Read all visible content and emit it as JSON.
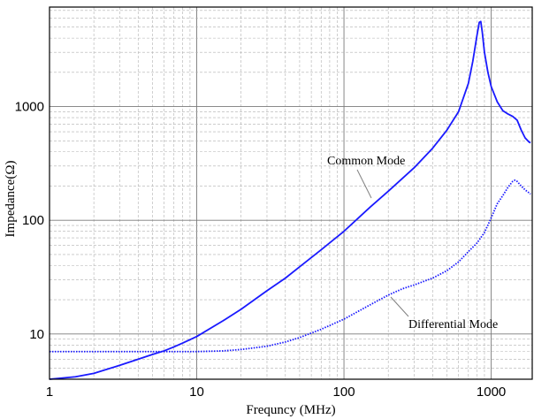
{
  "chart_data": {
    "type": "line",
    "title": "",
    "xlabel": "Frequncy (MHz)",
    "ylabel": "Impedance(Ω)",
    "x_scale": "log",
    "y_scale": "log",
    "xlim": [
      1,
      1900
    ],
    "ylim": [
      4,
      7500
    ],
    "grid": true,
    "x_ticks": [
      {
        "value": 1,
        "label": "1"
      },
      {
        "value": 10,
        "label": "10"
      },
      {
        "value": 100,
        "label": "100"
      },
      {
        "value": 1000,
        "label": "1000"
      }
    ],
    "y_ticks": [
      {
        "value": 10,
        "label": "10"
      },
      {
        "value": 100,
        "label": "100"
      },
      {
        "value": 1000,
        "label": "1000"
      }
    ],
    "series": [
      {
        "name": "Common Mode",
        "color": "#1a1aff",
        "style": "solid",
        "points": [
          [
            1,
            4.0
          ],
          [
            1.5,
            4.2
          ],
          [
            2,
            4.5
          ],
          [
            3,
            5.3
          ],
          [
            4,
            6.0
          ],
          [
            5,
            6.6
          ],
          [
            6,
            7.1
          ],
          [
            7,
            7.7
          ],
          [
            8,
            8.3
          ],
          [
            10,
            9.5
          ],
          [
            15,
            13
          ],
          [
            20,
            16.5
          ],
          [
            30,
            24
          ],
          [
            40,
            31
          ],
          [
            50,
            39
          ],
          [
            70,
            55
          ],
          [
            100,
            80
          ],
          [
            150,
            130
          ],
          [
            200,
            180
          ],
          [
            300,
            290
          ],
          [
            400,
            430
          ],
          [
            500,
            620
          ],
          [
            600,
            900
          ],
          [
            700,
            1600
          ],
          [
            750,
            2500
          ],
          [
            800,
            4200
          ],
          [
            830,
            5500
          ],
          [
            850,
            5600
          ],
          [
            870,
            4500
          ],
          [
            900,
            3000
          ],
          [
            950,
            2000
          ],
          [
            1000,
            1500
          ],
          [
            1100,
            1100
          ],
          [
            1200,
            920
          ],
          [
            1300,
            860
          ],
          [
            1400,
            820
          ],
          [
            1500,
            760
          ],
          [
            1600,
            620
          ],
          [
            1700,
            530
          ],
          [
            1800,
            490
          ],
          [
            1850,
            480
          ]
        ]
      },
      {
        "name": "Differential Mode",
        "color": "#1a1aff",
        "style": "dotted",
        "points": [
          [
            1,
            7.0
          ],
          [
            2,
            7.0
          ],
          [
            5,
            7.0
          ],
          [
            10,
            7.0
          ],
          [
            15,
            7.1
          ],
          [
            20,
            7.3
          ],
          [
            30,
            7.8
          ],
          [
            40,
            8.5
          ],
          [
            50,
            9.3
          ],
          [
            70,
            11
          ],
          [
            100,
            13.5
          ],
          [
            150,
            18
          ],
          [
            200,
            22
          ],
          [
            250,
            25
          ],
          [
            300,
            27
          ],
          [
            400,
            31
          ],
          [
            500,
            36
          ],
          [
            600,
            43
          ],
          [
            700,
            53
          ],
          [
            800,
            63
          ],
          [
            900,
            78
          ],
          [
            1000,
            105
          ],
          [
            1100,
            140
          ],
          [
            1200,
            165
          ],
          [
            1300,
            195
          ],
          [
            1400,
            220
          ],
          [
            1450,
            225
          ],
          [
            1500,
            220
          ],
          [
            1600,
            200
          ],
          [
            1700,
            185
          ],
          [
            1800,
            175
          ],
          [
            1850,
            170
          ]
        ]
      }
    ],
    "annotations": [
      {
        "text": "Common Mode",
        "at": [
          160,
          140
        ]
      },
      {
        "text": "Differential Mode",
        "at": [
          300,
          22
        ]
      }
    ]
  }
}
